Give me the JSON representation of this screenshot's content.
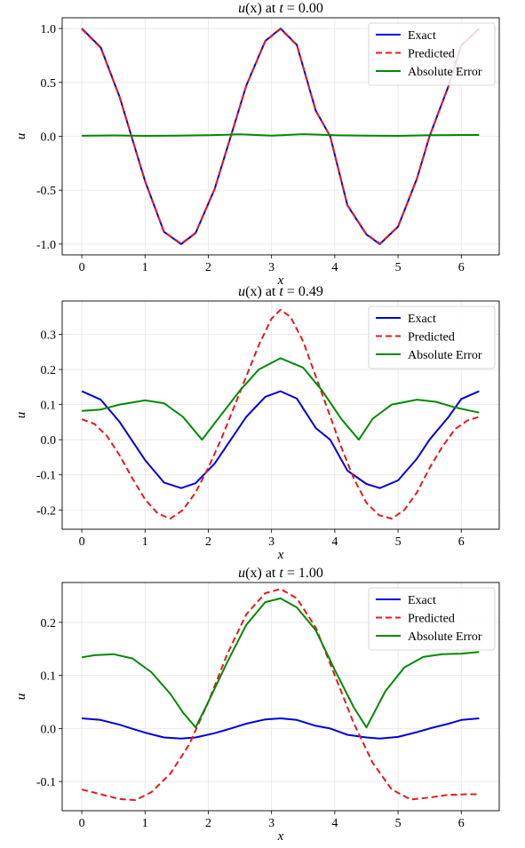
{
  "chart_data": [
    {
      "type": "line",
      "title": "u(x) at t = 0.00",
      "title_parts": {
        "func": "u",
        "arg": "(x)",
        "mid": " at ",
        "var": "t",
        "eq": " = 0.00"
      },
      "xlabel": "x",
      "ylabel": "u",
      "xlim": [
        -0.31,
        6.6
      ],
      "ylim": [
        -1.1,
        1.1
      ],
      "xticks": [
        0,
        1,
        2,
        3,
        4,
        5,
        6
      ],
      "xtick_labels": [
        "0",
        "1",
        "2",
        "3",
        "4",
        "5",
        "6"
      ],
      "yticks": [
        1.0,
        0.5,
        0.0,
        -0.5,
        -1.0
      ],
      "ytick_labels": [
        "1.0",
        "0.5",
        "0.0",
        "-0.5",
        "-1.0"
      ],
      "grid": true,
      "legend_position": "top-right",
      "series": [
        {
          "name": "Exact",
          "color": "#0000dd",
          "style": "solid",
          "x": [
            0,
            0.3,
            0.6,
            0.785,
            1.0,
            1.3,
            1.571,
            1.8,
            2.1,
            2.356,
            2.6,
            2.9,
            3.142,
            3.4,
            3.7,
            3.927,
            4.2,
            4.5,
            4.712,
            5.0,
            5.3,
            5.498,
            5.8,
            6.0,
            6.283
          ],
          "y": [
            1.0,
            0.825,
            0.362,
            0.0,
            -0.416,
            -0.887,
            -1.0,
            -0.897,
            -0.49,
            0.0,
            0.47,
            0.885,
            1.0,
            0.848,
            0.237,
            0.0,
            -0.64,
            -0.911,
            -1.0,
            -0.839,
            -0.392,
            0.0,
            0.47,
            0.844,
            1.0
          ]
        },
        {
          "name": "Predicted",
          "color": "#e8191c",
          "style": "dashed",
          "x": [
            0,
            0.3,
            0.6,
            0.785,
            1.0,
            1.3,
            1.571,
            1.8,
            2.1,
            2.356,
            2.6,
            2.9,
            3.142,
            3.4,
            3.7,
            3.927,
            4.2,
            4.5,
            4.712,
            5.0,
            5.3,
            5.498,
            5.8,
            6.0,
            6.283
          ],
          "y": [
            0.995,
            0.82,
            0.36,
            0.0,
            -0.415,
            -0.885,
            -0.995,
            -0.895,
            -0.488,
            0.0,
            0.468,
            0.882,
            0.995,
            0.845,
            0.235,
            0.0,
            -0.638,
            -0.908,
            -0.995,
            -0.836,
            -0.39,
            0.0,
            0.468,
            0.84,
            0.995
          ]
        },
        {
          "name": "Absolute Error",
          "color": "#008a00",
          "style": "solid",
          "x": [
            0,
            0.5,
            1.0,
            1.5,
            2.0,
            2.5,
            3.0,
            3.5,
            4.0,
            4.5,
            5.0,
            5.5,
            6.0,
            6.283
          ],
          "y": [
            0.005,
            0.008,
            0.004,
            0.006,
            0.01,
            0.018,
            0.006,
            0.02,
            0.01,
            0.006,
            0.004,
            0.01,
            0.012,
            0.012
          ]
        }
      ]
    },
    {
      "type": "line",
      "title": "u(x) at t = 0.49",
      "title_parts": {
        "func": "u",
        "arg": "(x)",
        "mid": " at ",
        "var": "t",
        "eq": " = 0.49"
      },
      "xlabel": "x",
      "ylabel": "u",
      "xlim": [
        -0.31,
        6.6
      ],
      "ylim": [
        -0.255,
        0.395
      ],
      "xticks": [
        0,
        1,
        2,
        3,
        4,
        5,
        6
      ],
      "xtick_labels": [
        "0",
        "1",
        "2",
        "3",
        "4",
        "5",
        "6"
      ],
      "yticks": [
        0.3,
        0.2,
        0.1,
        0.0,
        -0.1,
        -0.2
      ],
      "ytick_labels": [
        "0.3",
        "0.2",
        "0.1",
        "0.0",
        "-0.1",
        "-0.2"
      ],
      "grid": true,
      "legend_position": "top-right",
      "series": [
        {
          "name": "Exact",
          "color": "#0000dd",
          "style": "solid",
          "x": [
            0,
            0.3,
            0.6,
            0.785,
            1.0,
            1.3,
            1.571,
            1.8,
            2.1,
            2.356,
            2.6,
            2.9,
            3.142,
            3.4,
            3.7,
            3.927,
            4.2,
            4.5,
            4.712,
            5.0,
            5.3,
            5.498,
            5.8,
            6.0,
            6.283
          ],
          "y": [
            0.138,
            0.114,
            0.05,
            0.0,
            -0.058,
            -0.122,
            -0.138,
            -0.124,
            -0.068,
            0.0,
            0.065,
            0.122,
            0.138,
            0.117,
            0.033,
            0.0,
            -0.088,
            -0.126,
            -0.138,
            -0.116,
            -0.054,
            0.0,
            0.065,
            0.116,
            0.138
          ]
        },
        {
          "name": "Predicted",
          "color": "#e8191c",
          "style": "dashed",
          "x": [
            0,
            0.2,
            0.4,
            0.6,
            0.8,
            1.0,
            1.2,
            1.4,
            1.6,
            1.8,
            2.0,
            2.2,
            2.4,
            2.6,
            2.8,
            3.0,
            3.142,
            3.3,
            3.5,
            3.7,
            3.9,
            4.1,
            4.3,
            4.5,
            4.7,
            4.9,
            5.1,
            5.3,
            5.5,
            5.7,
            5.9,
            6.1,
            6.283
          ],
          "y": [
            0.058,
            0.045,
            0.01,
            -0.045,
            -0.11,
            -0.17,
            -0.21,
            -0.225,
            -0.2,
            -0.15,
            -0.08,
            0.0,
            0.09,
            0.18,
            0.27,
            0.345,
            0.37,
            0.35,
            0.28,
            0.18,
            0.08,
            -0.02,
            -0.11,
            -0.18,
            -0.215,
            -0.225,
            -0.2,
            -0.15,
            -0.08,
            -0.02,
            0.03,
            0.055,
            0.065
          ]
        },
        {
          "name": "Absolute Error",
          "color": "#008a00",
          "style": "solid",
          "x": [
            0,
            0.3,
            0.6,
            1.0,
            1.3,
            1.6,
            1.9,
            2.2,
            2.5,
            2.8,
            3.142,
            3.5,
            3.8,
            4.1,
            4.38,
            4.6,
            4.9,
            5.3,
            5.6,
            5.9,
            6.283
          ],
          "y": [
            0.082,
            0.086,
            0.1,
            0.112,
            0.104,
            0.065,
            0.0,
            0.07,
            0.14,
            0.2,
            0.232,
            0.205,
            0.14,
            0.06,
            0.0,
            0.06,
            0.1,
            0.114,
            0.108,
            0.092,
            0.077
          ]
        }
      ]
    },
    {
      "type": "line",
      "title": "u(x) at t = 1.00",
      "title_parts": {
        "func": "u",
        "arg": "(x)",
        "mid": " at ",
        "var": "t",
        "eq": " = 1.00"
      },
      "xlabel": "x",
      "ylabel": "u",
      "xlim": [
        -0.31,
        6.6
      ],
      "ylim": [
        -0.155,
        0.275
      ],
      "xticks": [
        0,
        1,
        2,
        3,
        4,
        5,
        6
      ],
      "xtick_labels": [
        "0",
        "1",
        "2",
        "3",
        "4",
        "5",
        "6"
      ],
      "yticks": [
        0.2,
        0.1,
        0.0,
        -0.1
      ],
      "ytick_labels": [
        "0.2",
        "0.1",
        "0.0",
        "-0.1"
      ],
      "grid": true,
      "legend_position": "top-right",
      "series": [
        {
          "name": "Exact",
          "color": "#0000dd",
          "style": "solid",
          "x": [
            0,
            0.3,
            0.6,
            0.785,
            1.0,
            1.3,
            1.571,
            1.8,
            2.1,
            2.356,
            2.6,
            2.9,
            3.142,
            3.4,
            3.7,
            3.927,
            4.2,
            4.5,
            4.712,
            5.0,
            5.3,
            5.498,
            5.8,
            6.0,
            6.283
          ],
          "y": [
            0.019,
            0.016,
            0.007,
            0.0,
            -0.008,
            -0.017,
            -0.019,
            -0.017,
            -0.009,
            0.0,
            0.009,
            0.017,
            0.019,
            0.016,
            0.005,
            0.0,
            -0.012,
            -0.017,
            -0.019,
            -0.016,
            -0.007,
            0.0,
            0.009,
            0.016,
            0.019
          ]
        },
        {
          "name": "Predicted",
          "color": "#e8191c",
          "style": "dashed",
          "x": [
            0,
            0.3,
            0.6,
            0.85,
            1.1,
            1.4,
            1.7,
            2.0,
            2.3,
            2.6,
            2.9,
            3.142,
            3.4,
            3.7,
            4.0,
            4.3,
            4.6,
            4.9,
            5.2,
            5.5,
            5.8,
            6.1,
            6.283
          ],
          "y": [
            -0.115,
            -0.124,
            -0.133,
            -0.135,
            -0.12,
            -0.085,
            -0.03,
            0.05,
            0.14,
            0.215,
            0.255,
            0.263,
            0.245,
            0.19,
            0.1,
            0.01,
            -0.065,
            -0.115,
            -0.134,
            -0.13,
            -0.125,
            -0.124,
            -0.124
          ]
        },
        {
          "name": "Absolute Error",
          "color": "#008a00",
          "style": "solid",
          "x": [
            0,
            0.2,
            0.5,
            0.8,
            1.1,
            1.4,
            1.6,
            1.8,
            2.0,
            2.3,
            2.6,
            2.9,
            3.142,
            3.4,
            3.7,
            4.0,
            4.3,
            4.5,
            4.8,
            5.1,
            5.4,
            5.7,
            6.0,
            6.283
          ],
          "y": [
            0.134,
            0.138,
            0.14,
            0.132,
            0.106,
            0.065,
            0.03,
            0.002,
            0.05,
            0.125,
            0.195,
            0.238,
            0.245,
            0.228,
            0.185,
            0.11,
            0.04,
            0.002,
            0.07,
            0.115,
            0.135,
            0.14,
            0.141,
            0.144
          ]
        }
      ]
    }
  ]
}
